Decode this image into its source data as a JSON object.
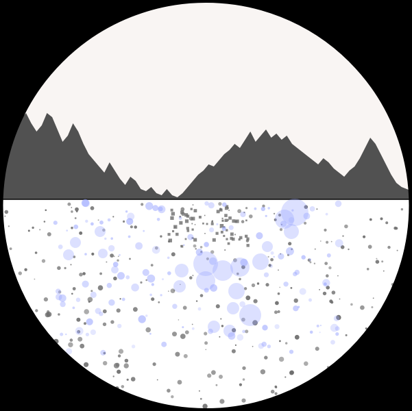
{
  "scene": {
    "colors": {
      "background": "#000000",
      "sky": "#f9f5f3",
      "ground": "#ffffff",
      "terrain": "#515151",
      "frame": "#000000",
      "stone": "#6d6d6d",
      "bubble": "#9aa6ff"
    },
    "terrain_profile": [
      0.3,
      0.33,
      0.31,
      0.34,
      0.39,
      0.42,
      0.37,
      0.33,
      0.36,
      0.42,
      0.4,
      0.34,
      0.28,
      0.31,
      0.37,
      0.33,
      0.27,
      0.22,
      0.19,
      0.16,
      0.13,
      0.18,
      0.14,
      0.1,
      0.07,
      0.11,
      0.09,
      0.05,
      0.04,
      0.06,
      0.03,
      0.02,
      0.05,
      0.02,
      0.01,
      0.03,
      0.06,
      0.09,
      0.12,
      0.14,
      0.17,
      0.16,
      0.19,
      0.22,
      0.24,
      0.27,
      0.25,
      0.29,
      0.33,
      0.28,
      0.31,
      0.34,
      0.3,
      0.32,
      0.29,
      0.31,
      0.27,
      0.25,
      0.23,
      0.21,
      0.19,
      0.17,
      0.2,
      0.18,
      0.15,
      0.13,
      0.11,
      0.14,
      0.16,
      0.2,
      0.25,
      0.3,
      0.27,
      0.22,
      0.17,
      0.12,
      0.08,
      0.06,
      0.05,
      0.04
    ],
    "stone_count": 320,
    "bubble_count": 140
  }
}
